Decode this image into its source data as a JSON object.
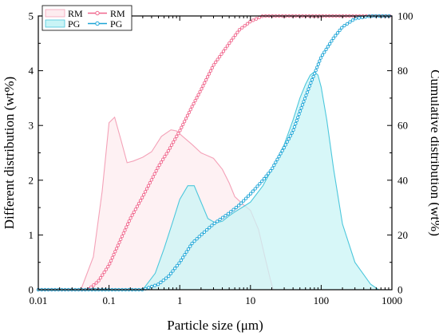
{
  "chart_data": {
    "type": "area",
    "title": "",
    "xlabel": "Particle size (μm)",
    "ylabel_left": "Different distribution (wt%)",
    "ylabel_right": "Cumulative distribution (wt%)",
    "x_scale": "log",
    "xlim": [
      0.01,
      1000
    ],
    "ylim_left": [
      0,
      5
    ],
    "ylim_right": [
      0,
      100
    ],
    "x_ticks": [
      "0.01",
      "0.1",
      "1",
      "10",
      "100",
      "1000"
    ],
    "y_ticks_left": [
      "0",
      "1",
      "2",
      "3",
      "4",
      "5"
    ],
    "y_ticks_right": [
      "0",
      "20",
      "40",
      "60",
      "80",
      "100"
    ],
    "grid": false,
    "legend_position": "top-left",
    "legend": [
      {
        "label": "RM",
        "kind": "area"
      },
      {
        "label": "RM",
        "kind": "line"
      },
      {
        "label": "PG",
        "kind": "area"
      },
      {
        "label": "PG",
        "kind": "line"
      }
    ],
    "colors": {
      "rm_fill": "#fdecef",
      "rm_line": "#f4a2b8",
      "rm_cumulative": "#f0668c",
      "pg_fill": "#c9f4f6",
      "pg_line": "#4cc7dc",
      "pg_cumulative": "#1ba4d6"
    },
    "series": [
      {
        "name": "RM",
        "type": "area",
        "axis": "left",
        "x": [
          0.04,
          0.06,
          0.08,
          0.1,
          0.12,
          0.15,
          0.18,
          0.22,
          0.3,
          0.4,
          0.55,
          0.75,
          0.9,
          1.1,
          1.5,
          2,
          3,
          4,
          5,
          6,
          8,
          10,
          13,
          16,
          19,
          21
        ],
        "y": [
          0,
          0.6,
          1.8,
          3.05,
          3.15,
          2.7,
          2.32,
          2.35,
          2.42,
          2.52,
          2.8,
          2.92,
          2.9,
          2.8,
          2.65,
          2.5,
          2.4,
          2.2,
          1.95,
          1.7,
          1.55,
          1.45,
          1.1,
          0.6,
          0.2,
          0
        ]
      },
      {
        "name": "PG",
        "type": "area",
        "axis": "left",
        "x": [
          0.3,
          0.45,
          0.6,
          0.8,
          1.0,
          1.3,
          1.6,
          2.0,
          2.5,
          3.2,
          4.0,
          5.0,
          6.0,
          8.0,
          10,
          15,
          20,
          30,
          40,
          50,
          60,
          70,
          80,
          90,
          100,
          120,
          150,
          200,
          300,
          500,
          650
        ],
        "y": [
          0,
          0.3,
          0.75,
          1.25,
          1.65,
          1.9,
          1.9,
          1.6,
          1.3,
          1.22,
          1.25,
          1.35,
          1.42,
          1.52,
          1.6,
          1.9,
          2.2,
          2.65,
          3.1,
          3.5,
          3.75,
          3.92,
          3.98,
          3.92,
          3.7,
          3.1,
          2.2,
          1.2,
          0.5,
          0.1,
          0
        ]
      },
      {
        "name": "RM",
        "type": "line",
        "axis": "right",
        "x": [
          0.01,
          0.05,
          0.07,
          0.1,
          0.15,
          0.2,
          0.3,
          0.5,
          0.7,
          1,
          1.5,
          2,
          3,
          5,
          7,
          10,
          15,
          20,
          30,
          100,
          1000
        ],
        "y": [
          0,
          0,
          3,
          9,
          19,
          26,
          34,
          45,
          51,
          58,
          67,
          73,
          82,
          90,
          95,
          98,
          100,
          100,
          100,
          100,
          100
        ]
      },
      {
        "name": "PG",
        "type": "line",
        "axis": "right",
        "x": [
          0.01,
          0.3,
          0.5,
          0.7,
          1,
          1.5,
          2,
          3,
          5,
          7,
          10,
          15,
          20,
          30,
          40,
          50,
          70,
          100,
          150,
          200,
          300,
          500,
          1000
        ],
        "y": [
          0,
          0,
          2,
          5,
          10,
          17,
          20,
          24,
          28,
          31,
          35,
          40,
          44,
          52,
          58,
          65,
          75,
          85,
          92,
          96,
          99,
          100,
          100
        ]
      }
    ]
  }
}
